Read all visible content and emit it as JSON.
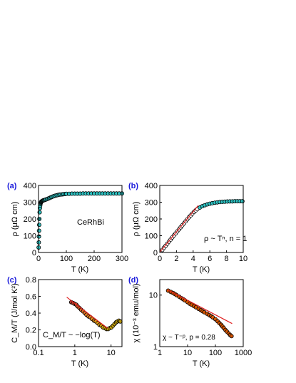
{
  "chart_data": [
    {
      "panel": "(a)",
      "type": "scatter",
      "xlabel": "T (K)",
      "ylabel": "ρ (μΩ cm)",
      "annotation": "CeRhBi",
      "xlim": [
        0,
        300
      ],
      "ylim": [
        0,
        400
      ],
      "x_ticks": [
        "0",
        "100",
        "200",
        "300"
      ],
      "y_ticks": [
        "0",
        "100",
        "200",
        "300",
        "400"
      ],
      "marker_color": "#2ec4c4",
      "x": [
        0.5,
        1,
        1.5,
        2,
        2.5,
        3,
        4,
        5,
        6,
        7,
        8,
        9,
        10,
        12,
        14,
        16,
        18,
        20,
        23,
        26,
        30,
        34,
        38,
        42,
        46,
        50,
        55,
        60,
        65,
        70,
        75,
        80,
        85,
        90,
        95,
        100,
        110,
        120,
        130,
        140,
        150,
        160,
        170,
        180,
        190,
        200,
        210,
        220,
        230,
        240,
        250,
        260,
        270,
        280,
        290,
        300
      ],
      "y": [
        30,
        60,
        95,
        130,
        165,
        200,
        240,
        265,
        280,
        290,
        296,
        300,
        303,
        306,
        308,
        310,
        311,
        312,
        314,
        316,
        318,
        321,
        324,
        327,
        330,
        333,
        336,
        339,
        341,
        343,
        345,
        346,
        347,
        348,
        349,
        350,
        350,
        351,
        351,
        351,
        351,
        352,
        352,
        352,
        352,
        352,
        352,
        352,
        352,
        352,
        352,
        352,
        352,
        352,
        352,
        352
      ]
    },
    {
      "panel": "(b)",
      "type": "scatter",
      "xlabel": "T (K)",
      "ylabel": "ρ (μΩ cm)",
      "annotation": "ρ ~ Tⁿ, n = 1",
      "xlim": [
        0,
        10
      ],
      "ylim": [
        0,
        400
      ],
      "x_ticks": [
        "0",
        "2",
        "4",
        "6",
        "8",
        "10"
      ],
      "y_ticks": [
        "0",
        "100",
        "200",
        "300",
        "400"
      ],
      "marker_color_low_T": "#ffffff",
      "marker_color_high_T": "#2ec4c4",
      "fit_color": "#e02020",
      "fit_line": {
        "x": [
          0,
          4.6
        ],
        "y": [
          2,
          280
        ]
      },
      "x": [
        0.3,
        0.5,
        0.7,
        0.9,
        1.1,
        1.3,
        1.5,
        1.7,
        1.9,
        2.1,
        2.3,
        2.5,
        2.7,
        2.9,
        3.1,
        3.3,
        3.5,
        3.7,
        3.9,
        4.1,
        4.3,
        4.5,
        4.8,
        5.1,
        5.4,
        5.7,
        6.0,
        6.3,
        6.6,
        6.9,
        7.2,
        7.5,
        7.8,
        8.1,
        8.4,
        8.7,
        9.0,
        9.3,
        9.6,
        9.9
      ],
      "y": [
        15,
        28,
        40,
        52,
        65,
        77,
        90,
        102,
        114,
        126,
        138,
        150,
        162,
        174,
        186,
        198,
        210,
        221,
        232,
        242,
        251,
        259,
        268,
        276,
        282,
        287,
        291,
        294,
        297,
        299,
        301,
        302,
        303,
        304,
        305,
        305,
        306,
        306,
        306,
        306
      ]
    },
    {
      "panel": "(c)",
      "type": "scatter",
      "xlabel": "T (K)",
      "ylabel": "C_M/T (J/mol K²)",
      "annotation": "C_M/T ~ −log(T)",
      "xscale": "log",
      "xlim": [
        0.1,
        20
      ],
      "ylim": [
        0,
        0.8
      ],
      "x_ticks": [
        "0.1",
        "1",
        "10"
      ],
      "y_ticks": [
        "0.0",
        "0.2",
        "0.4",
        "0.6",
        "0.8"
      ],
      "marker_colors": [
        "#c0392b",
        "#e67e22",
        "#d4ac0d",
        "#b7950b"
      ],
      "fit_color": "#e02020",
      "fit_line": {
        "x": [
          0.6,
          8
        ],
        "y": [
          0.59,
          0.22
        ]
      },
      "x": [
        0.8,
        0.9,
        1.0,
        1.1,
        1.2,
        1.35,
        1.5,
        1.7,
        1.9,
        2.1,
        2.4,
        2.7,
        3.0,
        3.4,
        3.8,
        4.3,
        4.8,
        5.4,
        6.0,
        6.7,
        7.5,
        8.3,
        9.2,
        10.2,
        11.3,
        12.5,
        13.8,
        15.0,
        16.5,
        18.0
      ],
      "y": [
        0.53,
        0.52,
        0.51,
        0.5,
        0.48,
        0.46,
        0.44,
        0.42,
        0.4,
        0.38,
        0.36,
        0.35,
        0.33,
        0.31,
        0.3,
        0.28,
        0.26,
        0.25,
        0.23,
        0.22,
        0.21,
        0.21,
        0.22,
        0.23,
        0.25,
        0.27,
        0.29,
        0.3,
        0.31,
        0.3
      ]
    },
    {
      "panel": "(d)",
      "type": "scatter",
      "xlabel": "T (K)",
      "ylabel": "χ (10⁻³ emu/mol)",
      "annotation": "χ ~ T⁻ᵖ, p = 0.28",
      "xscale": "log",
      "yscale": "log",
      "xlim": [
        1,
        1000
      ],
      "ylim": [
        1,
        20
      ],
      "x_ticks": [
        "1",
        "10",
        "100",
        "1000"
      ],
      "y_ticks": [
        "1",
        "10"
      ],
      "marker_color": "#d35400",
      "fit_color": "#e02020",
      "fit_line": {
        "x": [
          2,
          400
        ],
        "y": [
          12.5,
          2.8
        ]
      },
      "x": [
        2,
        2.5,
        3,
        3.5,
        4,
        5,
        6,
        7,
        8,
        10,
        12,
        14,
        17,
        20,
        25,
        30,
        35,
        40,
        50,
        60,
        70,
        80,
        100,
        120,
        140,
        160,
        180,
        200,
        230,
        260,
        300,
        340,
        380
      ],
      "y": [
        12.2,
        11.5,
        11.0,
        10.5,
        10.0,
        9.3,
        8.7,
        8.3,
        7.9,
        7.3,
        6.8,
        6.5,
        6.1,
        5.8,
        5.4,
        5.1,
        4.85,
        4.65,
        4.35,
        4.1,
        3.9,
        3.7,
        3.4,
        3.1,
        2.85,
        2.65,
        2.45,
        2.3,
        2.1,
        1.95,
        1.8,
        1.68,
        1.6
      ]
    }
  ]
}
